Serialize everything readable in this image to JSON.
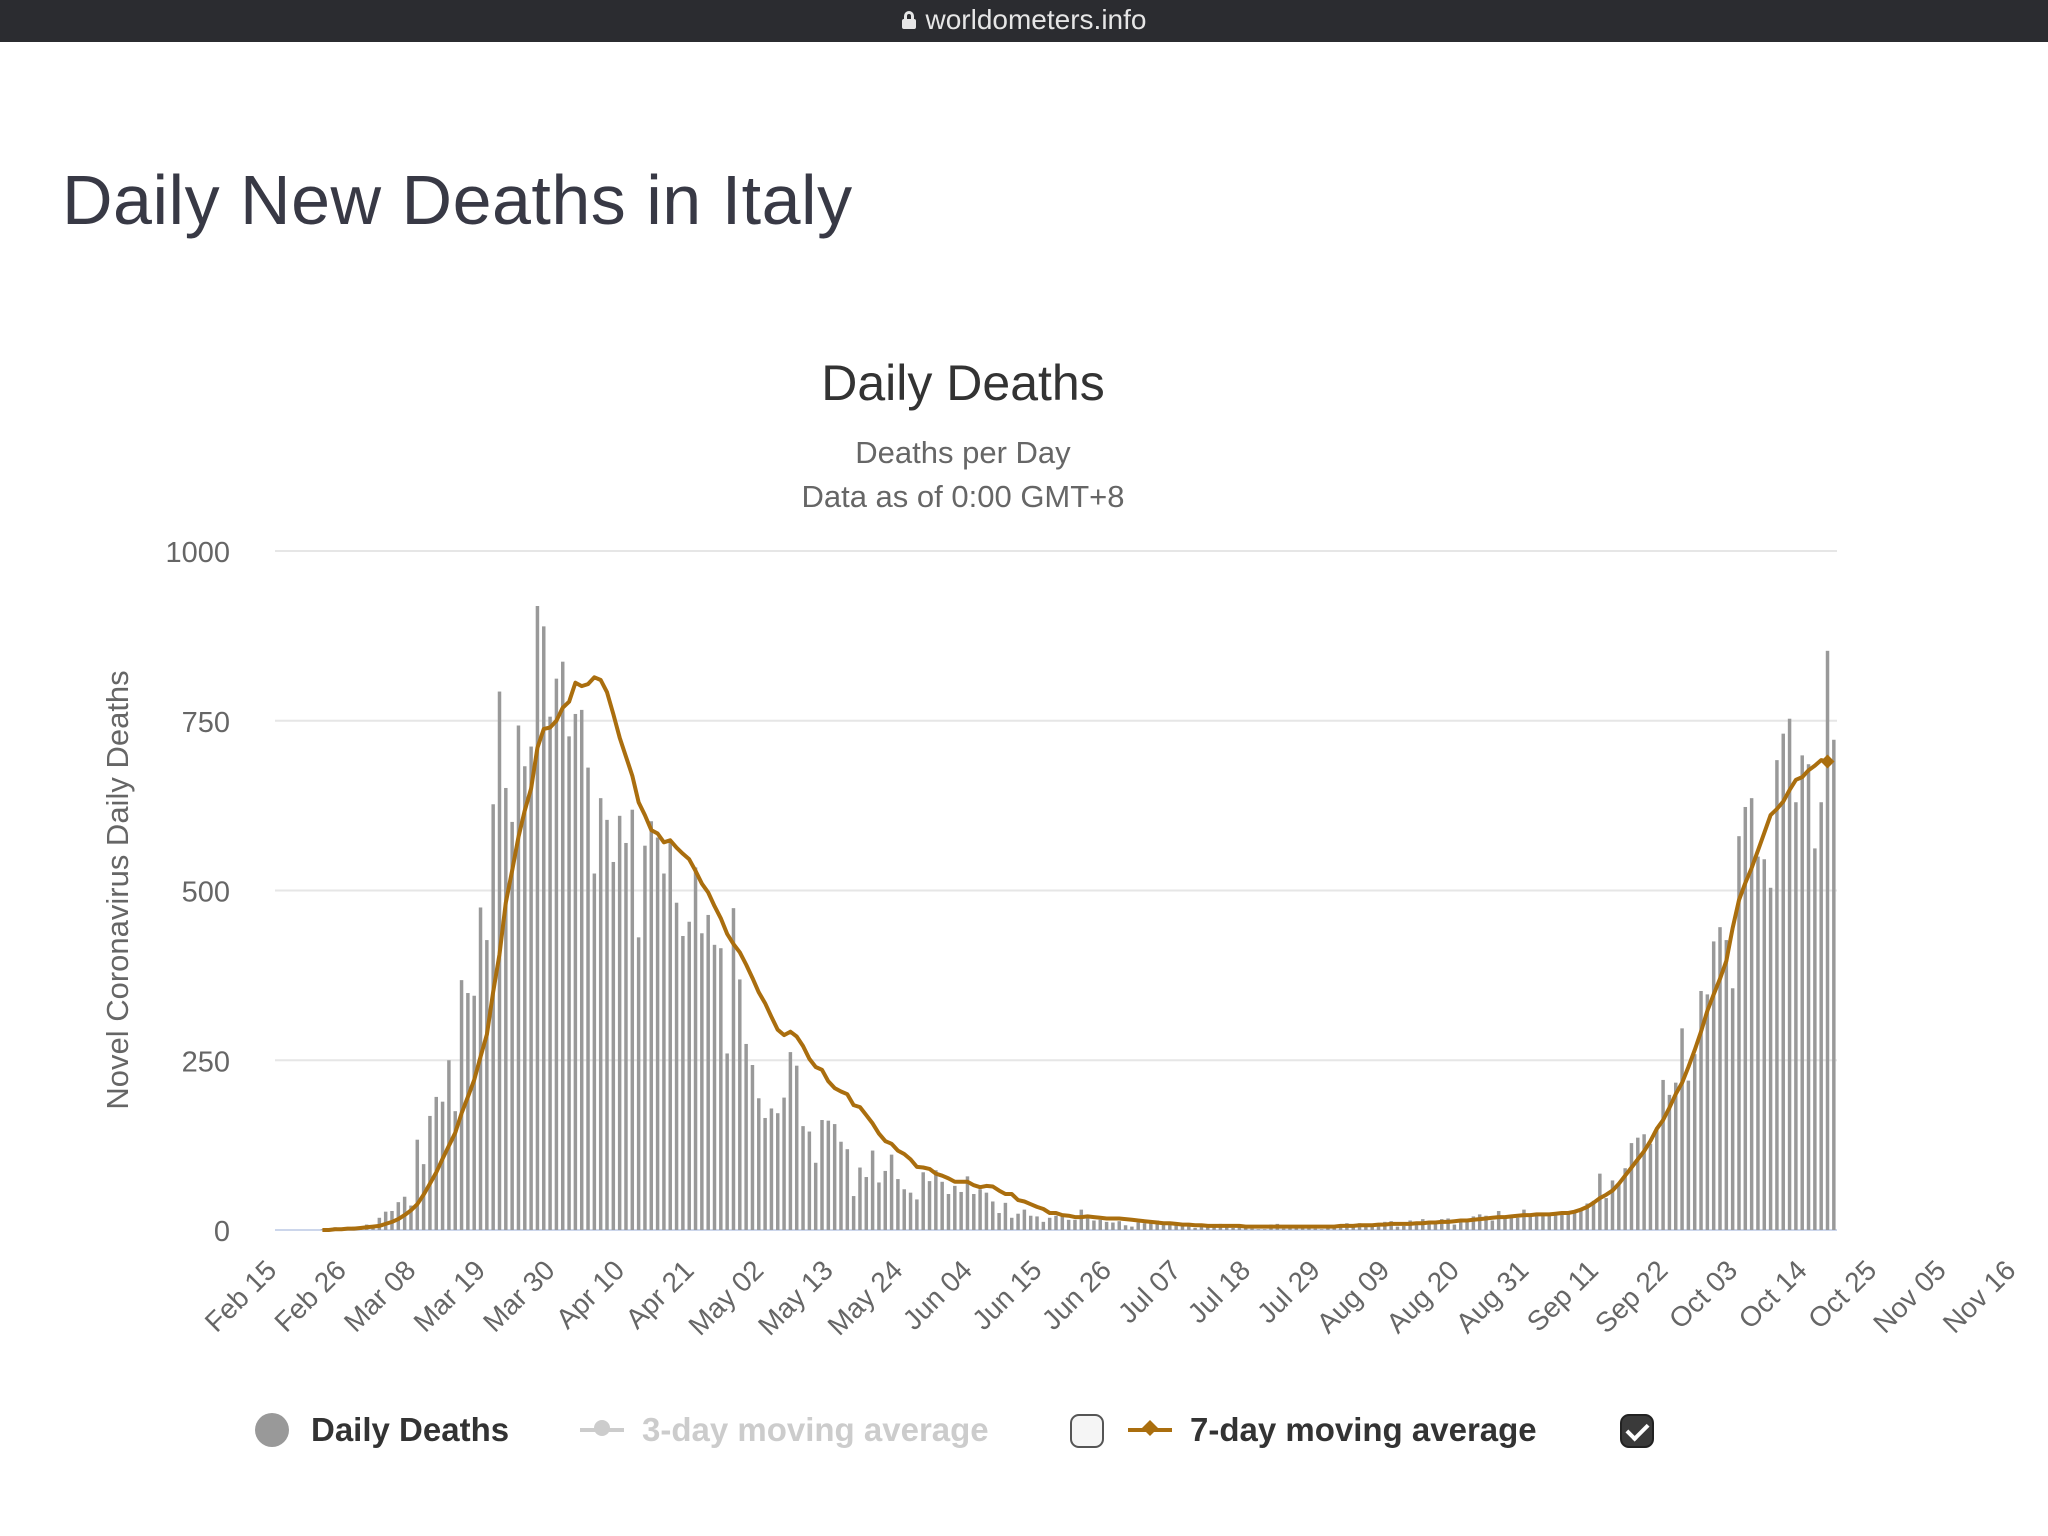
{
  "browser": {
    "url": "worldometers.info"
  },
  "page": {
    "title": "Daily New Deaths in Italy"
  },
  "chart_data": {
    "type": "bar",
    "title": "Daily Deaths",
    "subtitle_lines": [
      "Deaths per Day",
      "Data as of 0:00 GMT+8"
    ],
    "ylabel": "Novel Coronavirus Daily Deaths",
    "xlabel": "",
    "ylim": [
      0,
      1000
    ],
    "yticks": [
      0,
      250,
      500,
      750,
      1000
    ],
    "grid": true,
    "x_start": "2020-02-15",
    "x_tick_labels": [
      "Feb 15",
      "Feb 26",
      "Mar 08",
      "Mar 19",
      "Mar 30",
      "Apr 10",
      "Apr 21",
      "May 02",
      "May 13",
      "May 24",
      "Jun 04",
      "Jun 15",
      "Jun 26",
      "Jul 07",
      "Jul 18",
      "Jul 29",
      "Aug 09",
      "Aug 20",
      "Aug 31",
      "Sep 11",
      "Sep 22",
      "Oct 03",
      "Oct 14",
      "Oct 25",
      "Nov 05",
      "Nov 16"
    ],
    "series": [
      {
        "name": "Daily Deaths",
        "type": "bar",
        "color": "#999999",
        "values": [
          0,
          0,
          0,
          0,
          0,
          0,
          0,
          1,
          1,
          4,
          3,
          2,
          5,
          4,
          8,
          5,
          18,
          27,
          28,
          41,
          49,
          36,
          133,
          97,
          168,
          196,
          189,
          250,
          175,
          368,
          349,
          345,
          475,
          427,
          627,
          793,
          651,
          601,
          743,
          683,
          712,
          919,
          889,
          756,
          812,
          837,
          727,
          760,
          766,
          681,
          525,
          636,
          604,
          542,
          610,
          570,
          619,
          431,
          566,
          602,
          578,
          525,
          575,
          482,
          433,
          454,
          534,
          437,
          464,
          420,
          415,
          260,
          474,
          369,
          274,
          243,
          194,
          165,
          179,
          172,
          195,
          262,
          242,
          153,
          145,
          99,
          162,
          161,
          156,
          130,
          119,
          50,
          92,
          78,
          117,
          70,
          87,
          111,
          75,
          60,
          55,
          45,
          85,
          72,
          88,
          71,
          53,
          65,
          56,
          79,
          53,
          60,
          55,
          42,
          25,
          40,
          18,
          24,
          30,
          21,
          20,
          12,
          18,
          21,
          23,
          15,
          15,
          30,
          20,
          14,
          15,
          12,
          11,
          13,
          7,
          5,
          11,
          10,
          14,
          14,
          10,
          12,
          8,
          7,
          9,
          3,
          8,
          5,
          6,
          9,
          5,
          3,
          4,
          4,
          2,
          1,
          1,
          8,
          9,
          2,
          4,
          6,
          4,
          3,
          2,
          1,
          5,
          4,
          5,
          10,
          5,
          10,
          6,
          7,
          9,
          12,
          13,
          5,
          6,
          14,
          10,
          16,
          12,
          13,
          16,
          17,
          8,
          14,
          15,
          20,
          23,
          21,
          14,
          28,
          20,
          22,
          18,
          30,
          23,
          24,
          21,
          23,
          26,
          25,
          26,
          28,
          31,
          39,
          43,
          83,
          47,
          73,
          69,
          91,
          128,
          136,
          141,
          127,
          151,
          221,
          199,
          217,
          297,
          220,
          259,
          352,
          347,
          425,
          446,
          427,
          356,
          580,
          623,
          636,
          550,
          546,
          504,
          692,
          731,
          753,
          630,
          699,
          686,
          562,
          630,
          853,
          722
        ],
        "visible": true
      },
      {
        "name": "3-day moving average",
        "type": "line",
        "color": "#cccccc",
        "visible": false
      },
      {
        "name": "7-day moving average",
        "type": "line",
        "color": "#aa6e0e",
        "visible": true,
        "values": [
          0,
          0,
          0,
          0,
          0,
          0,
          0,
          0,
          0,
          1,
          1,
          2,
          2,
          3,
          4,
          5,
          6,
          9,
          12,
          16,
          22,
          29,
          38,
          52,
          68,
          85,
          105,
          124,
          143,
          172,
          196,
          221,
          255,
          288,
          351,
          406,
          482,
          529,
          579,
          618,
          650,
          710,
          738,
          740,
          750,
          769,
          778,
          806,
          801,
          804,
          814,
          810,
          792,
          760,
          725,
          697,
          669,
          630,
          611,
          589,
          584,
          571,
          574,
          563,
          554,
          546,
          529,
          510,
          497,
          477,
          459,
          436,
          421,
          409,
          391,
          371,
          350,
          334,
          314,
          295,
          287,
          292,
          285,
          271,
          252,
          240,
          236,
          219,
          209,
          204,
          200,
          184,
          181,
          169,
          157,
          142,
          131,
          127,
          117,
          112,
          104,
          93,
          92,
          90,
          83,
          80,
          76,
          71,
          71,
          71,
          66,
          63,
          65,
          64,
          58,
          53,
          53,
          44,
          42,
          38,
          34,
          31,
          25,
          25,
          22,
          21,
          19,
          19,
          20,
          19,
          18,
          17,
          17,
          17,
          16,
          15,
          14,
          13,
          12,
          11,
          10,
          10,
          9,
          8,
          8,
          7,
          7,
          6,
          6,
          6,
          6,
          6,
          6,
          5,
          5,
          5,
          5,
          5,
          5,
          5,
          5,
          5,
          5,
          5,
          5,
          5,
          5,
          5,
          6,
          6,
          6,
          7,
          7,
          7,
          8,
          8,
          9,
          9,
          9,
          9,
          10,
          10,
          11,
          11,
          12,
          12,
          13,
          14,
          14,
          15,
          16,
          17,
          18,
          19,
          19,
          20,
          21,
          22,
          22,
          23,
          23,
          23,
          24,
          25,
          25,
          27,
          30,
          34,
          40,
          47,
          52,
          58,
          68,
          80,
          92,
          104,
          116,
          131,
          149,
          162,
          180,
          200,
          217,
          240,
          265,
          292,
          323,
          347,
          370,
          396,
          445,
          486,
          511,
          533,
          559,
          585,
          611,
          620,
          631,
          648,
          663,
          667,
          677,
          684,
          692,
          690
        ]
      }
    ],
    "legend": {
      "placement": "bottom-center",
      "items": [
        {
          "label": "Daily Deaths",
          "color": "#999999",
          "active": true
        },
        {
          "label": "3-day moving average",
          "color": "#cccccc",
          "active": false,
          "checkbox_checked": false
        },
        {
          "label": "7-day moving average",
          "color": "#aa6e0e",
          "active": true,
          "checkbox_checked": true
        }
      ]
    }
  }
}
